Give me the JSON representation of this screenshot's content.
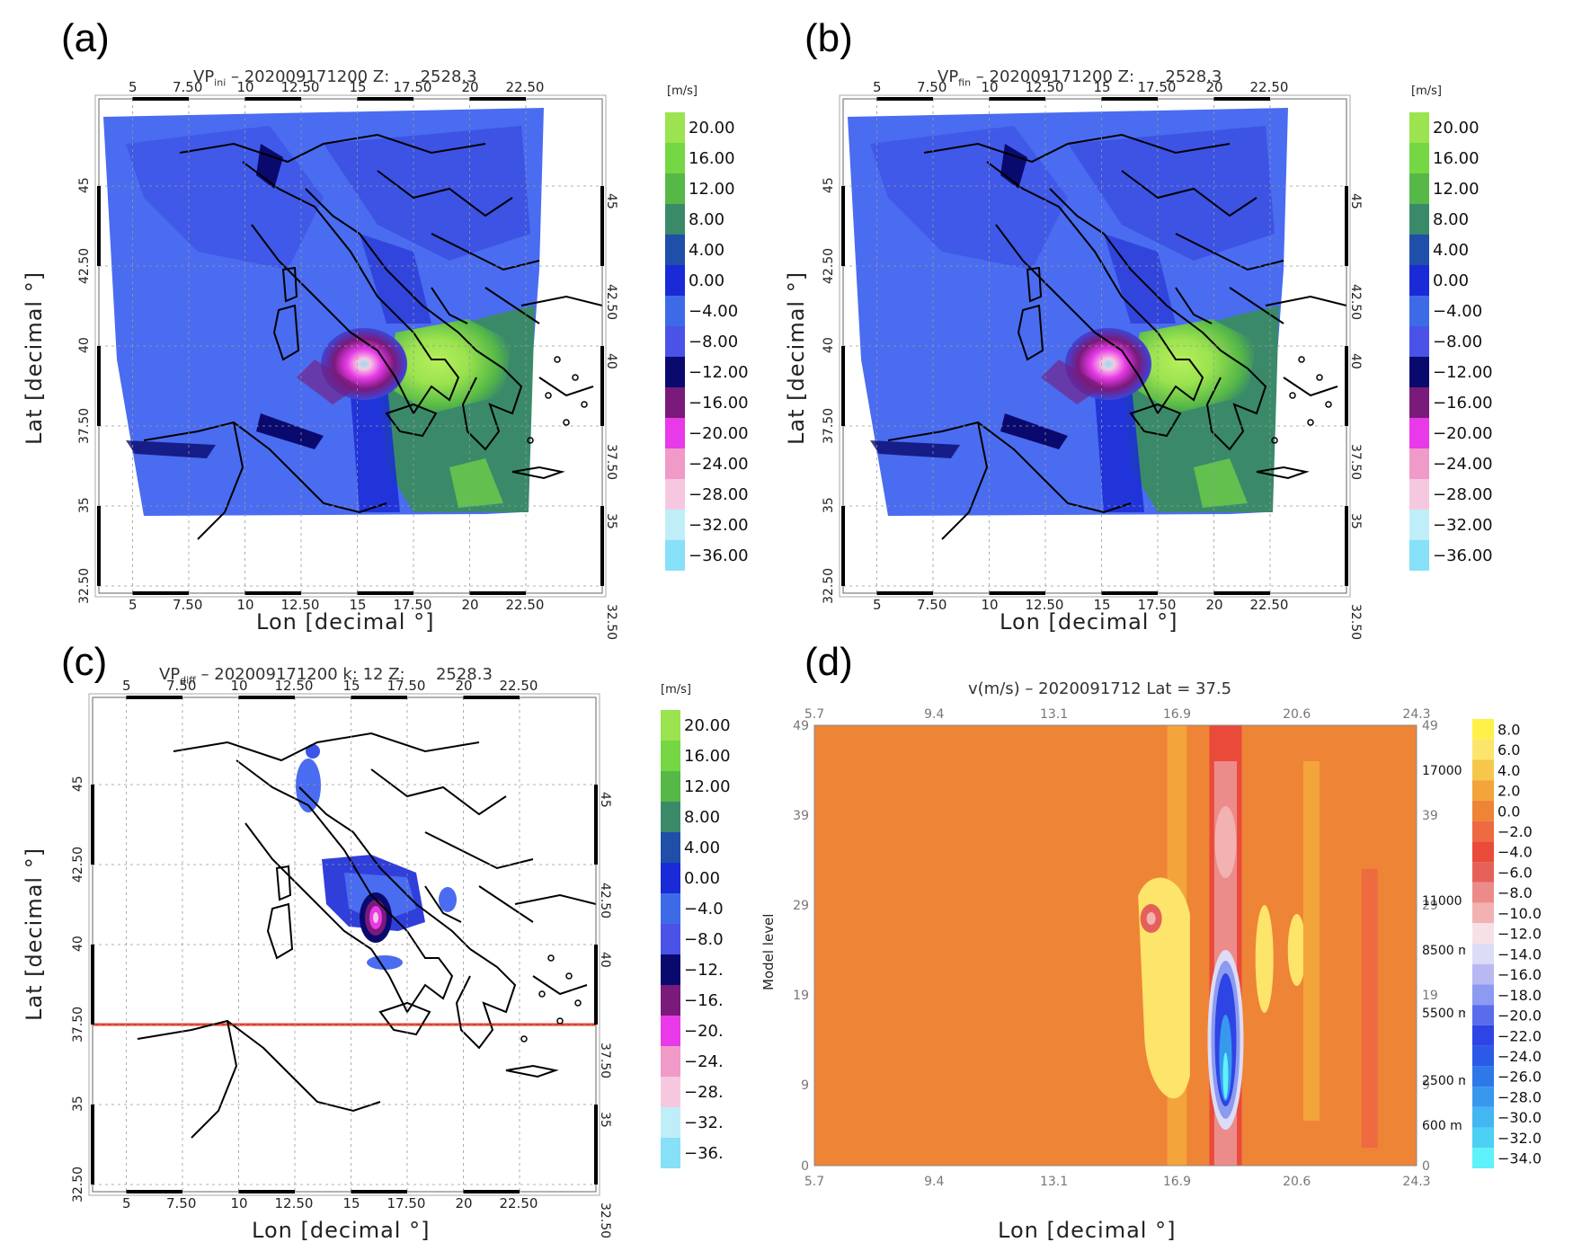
{
  "panels": {
    "a": {
      "letter": "(a)",
      "title_pre": "VP",
      "title_sub": "ini",
      "title_post": " – 202009171200 Z:      2528.3",
      "xlabel": "Lon [decimal °]",
      "ylabel": "Lat [decimal °]",
      "unit": "[m/s]"
    },
    "b": {
      "letter": "(b)",
      "title_pre": "VP",
      "title_sub": "fin",
      "title_post": " – 202009171200 Z:      2528.3",
      "xlabel": "Lon [decimal °]",
      "ylabel": "Lat [decimal °]",
      "unit": "[m/s]"
    },
    "c": {
      "letter": "(c)",
      "title_pre": "VP",
      "title_sub": "diff",
      "title_post": " – 202009171200 k: 12 Z:      2528.3",
      "xlabel": "Lon [decimal °]",
      "ylabel": "Lat [decimal °]",
      "unit": "[m/s]"
    },
    "d": {
      "letter": "(d)",
      "title": "v(m/s) – 2020091712 Lat =   37.5",
      "xlabel": "Lon [decimal °]",
      "ylabel": "Model level"
    }
  },
  "map_ticks": {
    "lon": [
      "5",
      "7.50",
      "10",
      "12.50",
      "15",
      "17.50",
      "20",
      "22.50"
    ],
    "lat": [
      "45",
      "42.50",
      "40",
      "37.50",
      "35",
      "32.50"
    ]
  },
  "colorbar_ab": {
    "labels": [
      "20.00",
      "16.00",
      "12.00",
      "8.00",
      "4.00",
      "0.00",
      "−4.00",
      "−8.00",
      "−12.00",
      "−16.00",
      "−20.00",
      "−24.00",
      "−28.00",
      "−32.00",
      "−36.00"
    ],
    "colors": [
      "#9be34f",
      "#74d743",
      "#55b847",
      "#3a8a6a",
      "#1f4fa8",
      "#1a2ad6",
      "#3d6be8",
      "#4a52e8",
      "#0a0a6e",
      "#7a1a7a",
      "#e83ae8",
      "#f09ac8",
      "#f6c8e0",
      "#bfeef8",
      "#86e0f8"
    ]
  },
  "colorbar_c": {
    "labels": [
      "20.00",
      "16.00",
      "12.00",
      "8.00",
      "4.00",
      "0.00",
      "−4.0",
      "−8.0",
      "−12.",
      "−16.",
      "−20.",
      "−24.",
      "−28.",
      "−32.",
      "−36."
    ]
  },
  "colorbar_d": {
    "labels": [
      "8.0",
      "6.0",
      "4.0",
      "2.0",
      "0.0",
      "−2.0",
      "−4.0",
      "−6.0",
      "−8.0",
      "−10.0",
      "−12.0",
      "−14.0",
      "−16.0",
      "−18.0",
      "−20.0",
      "−22.0",
      "−24.0",
      "−26.0",
      "−28.0",
      "−30.0",
      "−32.0",
      "−34.0"
    ],
    "colors": [
      "#fff14a",
      "#fde46a",
      "#f6c74a",
      "#f3a43a",
      "#ee8436",
      "#ee6a40",
      "#ea4a3a",
      "#e6605a",
      "#ec8c8a",
      "#f2b2b2",
      "#f6e2e6",
      "#dcdcf6",
      "#b8b8f2",
      "#8c9af0",
      "#5a6cec",
      "#2f44e4",
      "#2a5ae6",
      "#2e78ea",
      "#3898ee",
      "#44b6f2",
      "#4cd0f4",
      "#5ef2fa"
    ]
  },
  "chart_data": {
    "type": "heatmap",
    "title": "v(m/s) – 2020091712 Lat =   37.5",
    "xlabel": "Lon [decimal °]",
    "ylabel": "Model level",
    "x_ticks": [
      "5.7",
      "9.4",
      "13.1",
      "16.9",
      "20.6",
      "24.3"
    ],
    "y_ticks": [
      "0",
      "9",
      "19",
      "29",
      "39",
      "49"
    ],
    "xlim": [
      5.7,
      24.3
    ],
    "ylim": [
      0,
      49
    ],
    "height_labels": [
      "17000 m",
      "11000 m",
      "8500 m",
      "5500 m",
      "2500 m",
      "600 m"
    ]
  }
}
